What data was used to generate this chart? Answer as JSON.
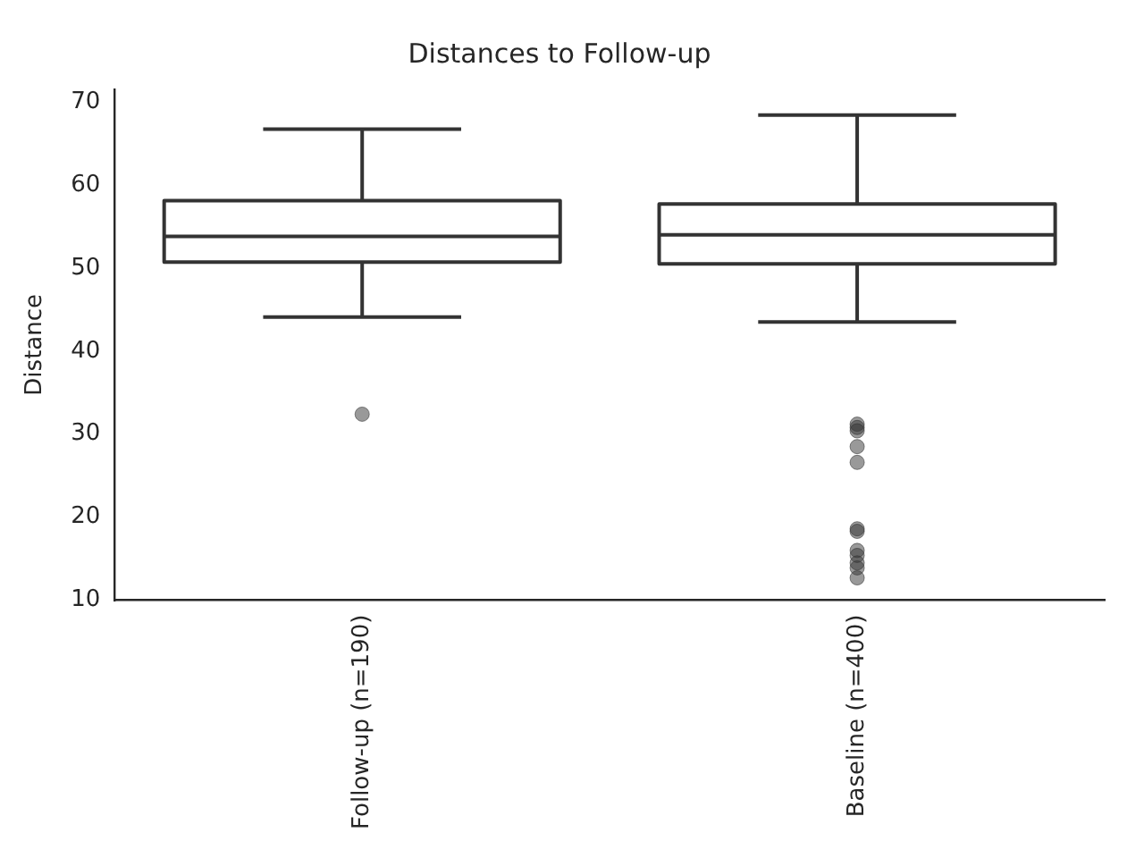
{
  "chart_data": {
    "type": "box",
    "title": "Distances to Follow-up",
    "ylabel": "Distance",
    "categories": [
      "Follow-up (n=190)",
      "Baseline (n=400)"
    ],
    "color": "#333333",
    "ylim": [
      10,
      71.5
    ],
    "yticks": [
      10,
      20,
      30,
      40,
      50,
      60,
      70
    ],
    "grid": false,
    "legend": false,
    "boxes": [
      {
        "low": 44.1,
        "q1": 50.7,
        "median": 53.8,
        "q3": 58.1,
        "high": 66.7,
        "outliers": [
          32.4
        ]
      },
      {
        "low": 43.5,
        "q1": 50.5,
        "median": 54.0,
        "q3": 57.7,
        "high": 68.4,
        "outliers": [
          31.2,
          30.8,
          30.4,
          28.5,
          26.6,
          18.6,
          18.3,
          16.0,
          15.4,
          14.5,
          13.9,
          12.7
        ]
      }
    ]
  }
}
